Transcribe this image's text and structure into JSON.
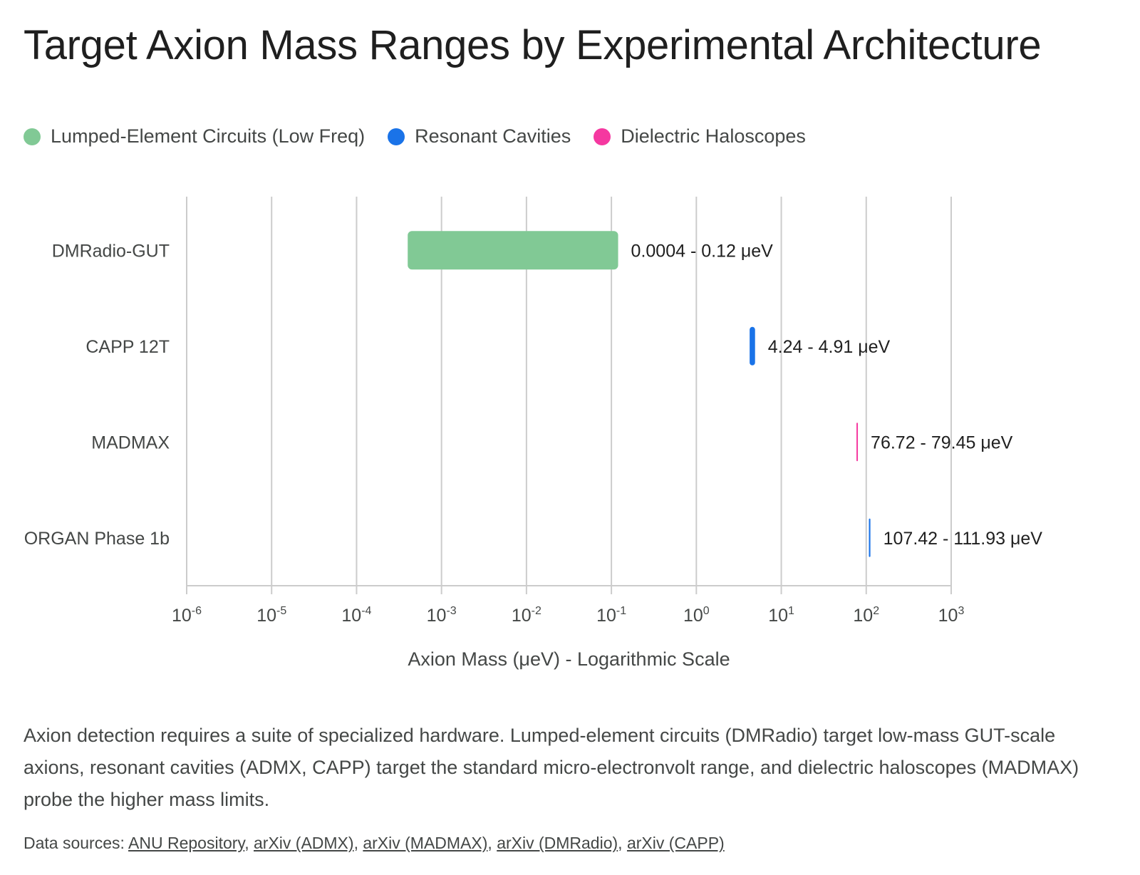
{
  "title": "Target Axion Mass Ranges by Experimental Architecture",
  "legend": [
    {
      "label": "Lumped-Element Circuits (Low Freq)",
      "color": "#81c995"
    },
    {
      "label": "Resonant Cavities",
      "color": "#1a73e8"
    },
    {
      "label": "Dielectric Haloscopes",
      "color": "#f538a0"
    }
  ],
  "chart_data": {
    "type": "bar",
    "orientation": "horizontal-range",
    "x_scale": "log",
    "xlim": [
      1e-06,
      1000
    ],
    "xlabel": "Axion Mass (μeV) - Logarithmic Scale",
    "x_ticks": [
      {
        "base": "10",
        "exp": "-6"
      },
      {
        "base": "10",
        "exp": "-5"
      },
      {
        "base": "10",
        "exp": "-4"
      },
      {
        "base": "10",
        "exp": "-3"
      },
      {
        "base": "10",
        "exp": "-2"
      },
      {
        "base": "10",
        "exp": "-1"
      },
      {
        "base": "10",
        "exp": "0"
      },
      {
        "base": "10",
        "exp": "1"
      },
      {
        "base": "10",
        "exp": "2"
      },
      {
        "base": "10",
        "exp": "3"
      }
    ],
    "grid": true,
    "categories": [
      "DMRadio-GUT",
      "CAPP 12T",
      "MADMAX",
      "ORGAN Phase 1b"
    ],
    "ranges": [
      {
        "category": "DMRadio-GUT",
        "low": 0.0004,
        "high": 0.12,
        "label": "0.0004 - 0.12 μeV",
        "group": "Lumped-Element Circuits (Low Freq)",
        "color": "#81c995"
      },
      {
        "category": "CAPP 12T",
        "low": 4.24,
        "high": 4.91,
        "label": "4.24 - 4.91 μeV",
        "group": "Resonant Cavities",
        "color": "#1a73e8"
      },
      {
        "category": "MADMAX",
        "low": 76.72,
        "high": 79.45,
        "label": "76.72 - 79.45 μeV",
        "group": "Dielectric Haloscopes",
        "color": "#f538a0"
      },
      {
        "category": "ORGAN Phase 1b",
        "low": 107.42,
        "high": 111.93,
        "label": "107.42 - 111.93 μeV",
        "group": "Resonant Cavities",
        "color": "#1a73e8"
      }
    ]
  },
  "description": "Axion detection requires a suite of specialized hardware. Lumped-element circuits (DMRadio) target low-mass GUT-scale axions, resonant cavities (ADMX, CAPP) target the standard micro-electronvolt range, and dielectric haloscopes (MADMAX) probe the higher mass limits.",
  "sources": {
    "prefix": "Data sources: ",
    "links": [
      "ANU Repository",
      "arXiv (ADMX)",
      "arXiv (MADMAX)",
      "arXiv (DMRadio)",
      "arXiv (CAPP)"
    ]
  }
}
